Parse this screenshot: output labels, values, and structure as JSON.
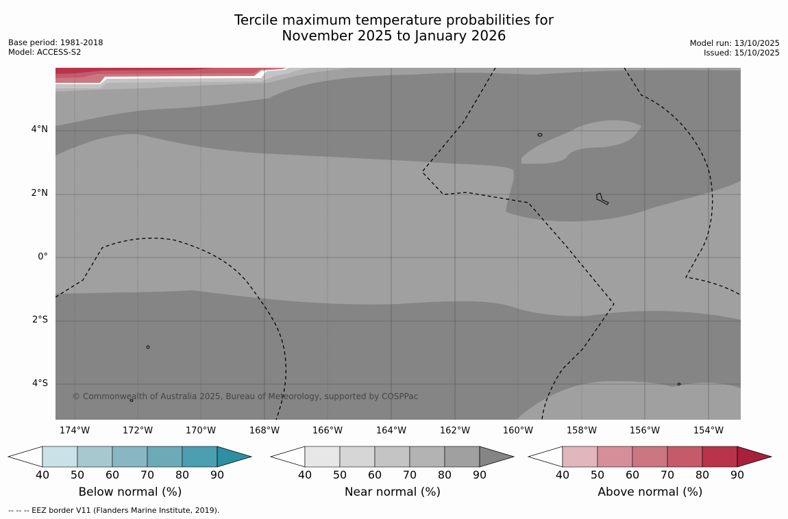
{
  "title": {
    "line1": "Tercile maximum temperature probabilities for",
    "line2": "November 2025 to January 2026"
  },
  "meta_left": {
    "base_period": "Base period: 1981-2018",
    "model": "Model: ACCESS-S2"
  },
  "meta_right": {
    "model_run": "Model run: 13/10/2025",
    "issued": "Issued: 15/10/2025"
  },
  "latitude_labels": [
    "4°N",
    "2°N",
    "0°",
    "2°S",
    "4°S"
  ],
  "longitude_labels": [
    "174°W",
    "172°W",
    "170°W",
    "168°W",
    "166°W",
    "164°W",
    "162°W",
    "160°W",
    "158°W",
    "156°W",
    "154°W"
  ],
  "copyright": "© Commonwealth of Australia 2025, Bureau of Meteorology, supported by COSPPac",
  "colorbars": [
    {
      "label": "Below normal (%)",
      "ticks": [
        "40",
        "50",
        "60",
        "70",
        "80",
        "90"
      ],
      "colors": [
        "#ffffff",
        "#c9e2e8",
        "#a7c8ce",
        "#88b6c2",
        "#6daab7",
        "#4b9fb0",
        "#2e8ea3"
      ]
    },
    {
      "label": "Near normal (%)",
      "ticks": [
        "40",
        "50",
        "60",
        "70",
        "80",
        "90"
      ],
      "colors": [
        "#ffffff",
        "#e7e7e7",
        "#d6d6d6",
        "#c4c4c4",
        "#b3b3b3",
        "#a0a0a0",
        "#858585"
      ]
    },
    {
      "label": "Above normal (%)",
      "ticks": [
        "40",
        "50",
        "60",
        "70",
        "80",
        "90"
      ],
      "colors": [
        "#ffffff",
        "#e1b6bd",
        "#d68f99",
        "#cc7681",
        "#c45a6a",
        "#b8344b",
        "#a8203c"
      ]
    }
  ],
  "footer": "--  --  -- EEZ border V11 (Flanders Marine Institute, 2019)."
}
